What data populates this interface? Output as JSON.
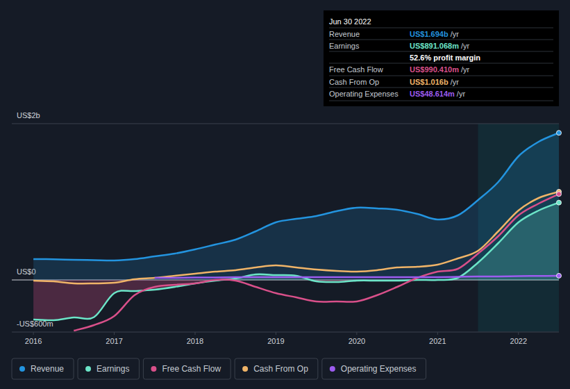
{
  "chart_data": {
    "type": "line",
    "x": [
      2016,
      2016.25,
      2016.5,
      2016.75,
      2017,
      2017.25,
      2017.5,
      2017.75,
      2018,
      2018.25,
      2018.5,
      2018.75,
      2019,
      2019.25,
      2019.5,
      2019.75,
      2020,
      2020.25,
      2020.5,
      2020.75,
      2021,
      2021.25,
      2021.5,
      2021.75,
      2022,
      2022.25,
      2022.5
    ],
    "xlim": [
      2015.75,
      2022.5
    ],
    "xticks": [
      2016,
      2017,
      2018,
      2019,
      2020,
      2021,
      2022
    ],
    "ylim": [
      -600,
      1800
    ],
    "yticks": [
      {
        "value": -600,
        "label": "-US$600m"
      },
      {
        "value": 0,
        "label": "US$0"
      },
      {
        "value": 1800,
        "label": "US$2b"
      }
    ],
    "grid": true,
    "legend": "bottom",
    "series": [
      {
        "name": "Revenue",
        "color": "#2394df",
        "type": "area",
        "values": [
          240,
          238,
          232,
          228,
          224,
          240,
          272,
          304,
          352,
          408,
          464,
          560,
          664,
          704,
          736,
          792,
          832,
          824,
          808,
          760,
          696,
          744,
          920,
          1128,
          1424,
          1592,
          1694
        ]
      },
      {
        "name": "Earnings",
        "color": "#6ce5c8",
        "type": "area",
        "values": [
          -456,
          -464,
          -432,
          -428,
          -152,
          -128,
          -112,
          -80,
          -40,
          -8,
          16,
          64,
          56,
          48,
          -16,
          -24,
          -8,
          -8,
          -8,
          0,
          0,
          24,
          200,
          424,
          664,
          800,
          891
        ]
      },
      {
        "name": "Free Cash Flow",
        "color": "#d9508a",
        "type": "line",
        "values": [
          null,
          null,
          -584,
          -520,
          -416,
          -176,
          -80,
          -56,
          -40,
          0,
          -8,
          -80,
          -152,
          -200,
          -248,
          -248,
          -248,
          -176,
          -80,
          24,
          96,
          128,
          304,
          504,
          744,
          880,
          990
        ]
      },
      {
        "name": "Cash From Op",
        "color": "#f0b468",
        "type": "line",
        "values": [
          -8,
          -16,
          -40,
          -40,
          -32,
          8,
          24,
          48,
          72,
          96,
          112,
          144,
          168,
          144,
          120,
          104,
          96,
          112,
          144,
          152,
          176,
          248,
          336,
          560,
          800,
          944,
          1016
        ]
      },
      {
        "name": "Operating Expenses",
        "color": "#9d5cf0",
        "type": "line",
        "values": [
          null,
          null,
          null,
          null,
          null,
          null,
          24,
          24,
          28,
          28,
          32,
          32,
          32,
          32,
          32,
          32,
          32,
          32,
          32,
          32,
          32,
          36,
          40,
          40,
          44,
          46,
          48.6
        ]
      }
    ],
    "tooltip": {
      "title": "Jun 30 2022",
      "rows": [
        {
          "label": "Revenue",
          "value": "US$1.694b",
          "unit": "/yr",
          "color": "#2394df"
        },
        {
          "label": "Earnings",
          "value": "US$891.068m",
          "unit": "/yr",
          "color": "#6ce5c8"
        },
        {
          "value": "52.6% profit margin",
          "color": "#ffffff"
        },
        {
          "label": "Free Cash Flow",
          "value": "US$990.410m",
          "unit": "/yr",
          "color": "#d9508a"
        },
        {
          "label": "Cash From Op",
          "value": "US$1.016b",
          "unit": "/yr",
          "color": "#f0b468"
        },
        {
          "label": "Operating Expenses",
          "value": "US$48.614m",
          "unit": "/yr",
          "color": "#9d5cf0"
        }
      ]
    }
  }
}
